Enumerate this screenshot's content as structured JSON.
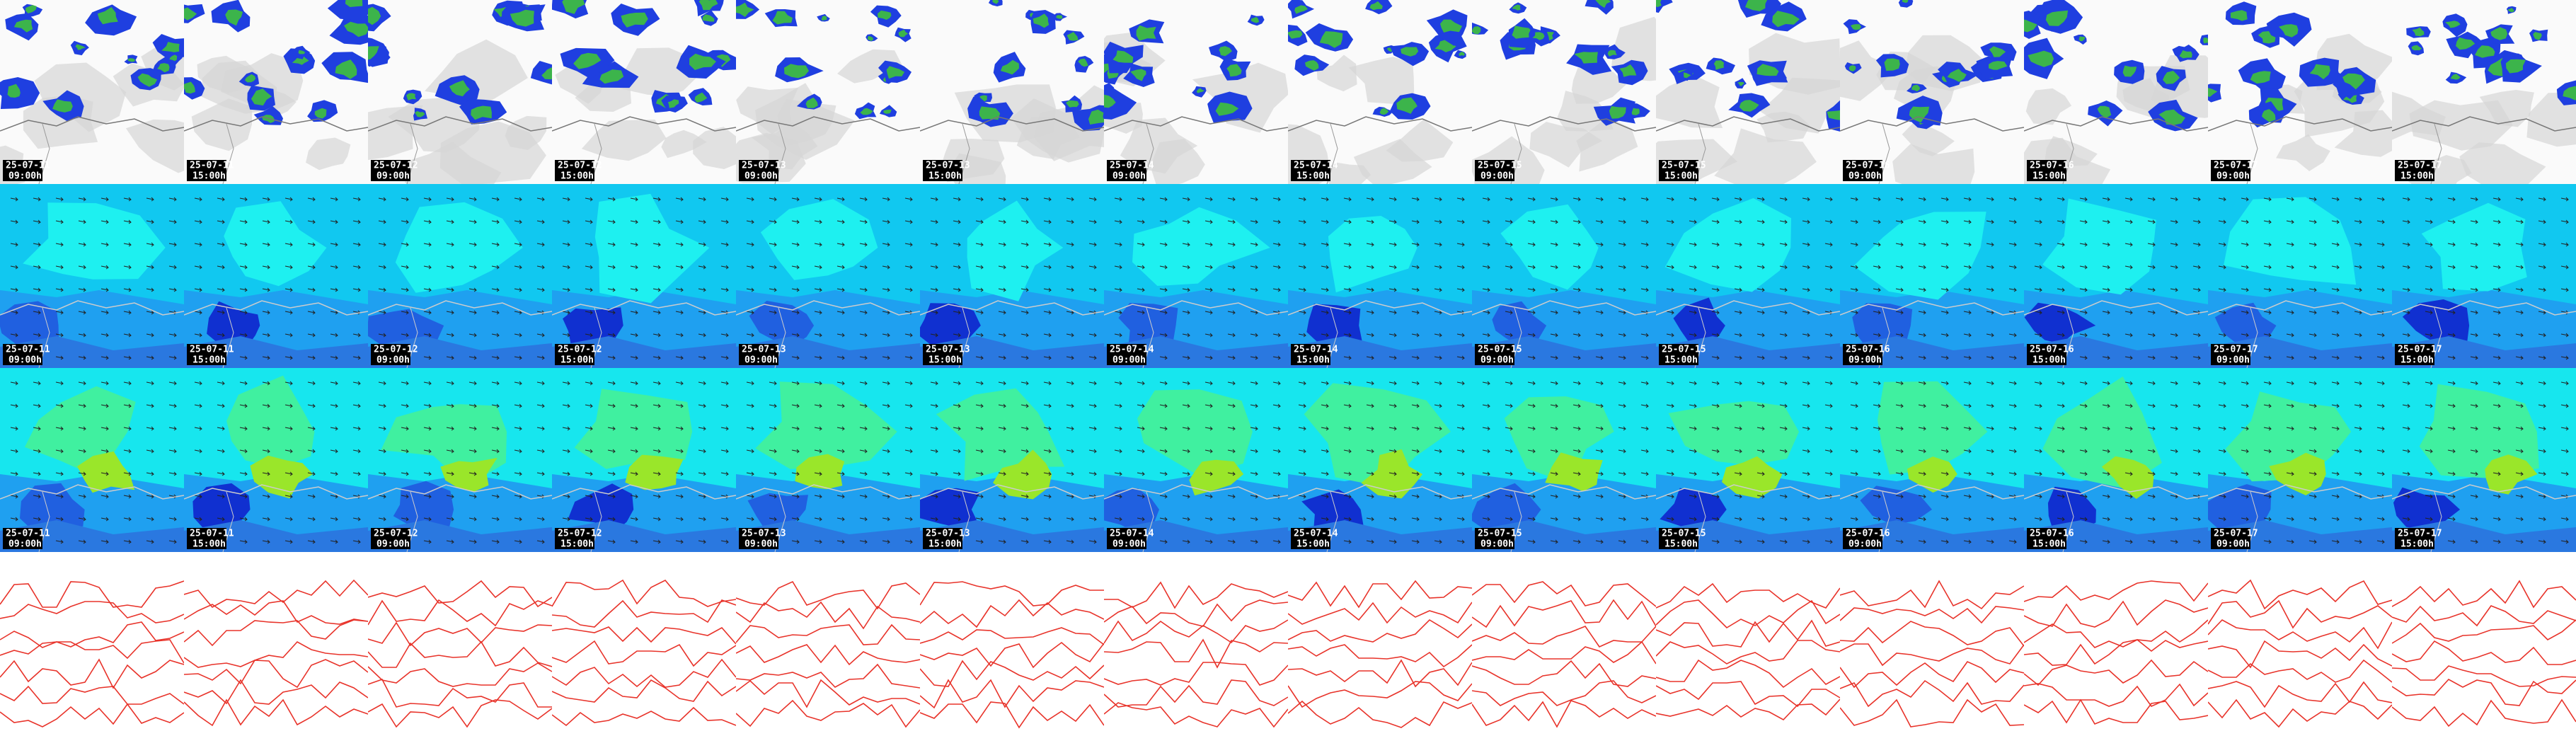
{
  "columns": [
    {
      "date": "25-07-11",
      "time": "09:00h"
    },
    {
      "date": "25-07-11",
      "time": "15:00h"
    },
    {
      "date": "25-07-12",
      "time": "09:00h"
    },
    {
      "date": "25-07-12",
      "time": "15:00h"
    },
    {
      "date": "25-07-13",
      "time": "09:00h"
    },
    {
      "date": "25-07-13",
      "time": "15:00h"
    },
    {
      "date": "25-07-14",
      "time": "09:00h"
    },
    {
      "date": "25-07-14",
      "time": "15:00h"
    },
    {
      "date": "25-07-15",
      "time": "09:00h"
    },
    {
      "date": "25-07-15",
      "time": "15:00h"
    },
    {
      "date": "25-07-16",
      "time": "09:00h"
    },
    {
      "date": "25-07-16",
      "time": "15:00h"
    },
    {
      "date": "25-07-17",
      "time": "09:00h"
    },
    {
      "date": "25-07-17",
      "time": "15:00h"
    }
  ]
}
